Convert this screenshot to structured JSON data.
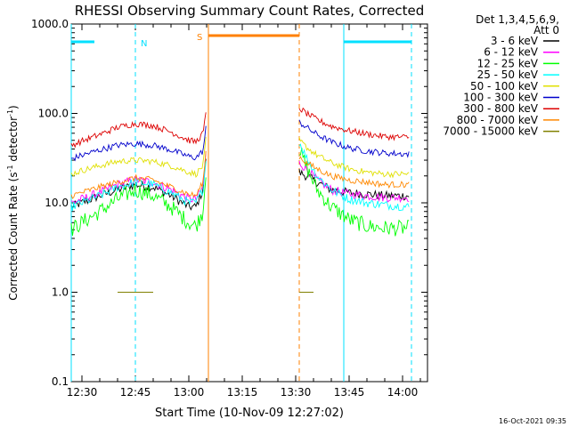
{
  "chart_data": {
    "type": "line",
    "title": "RHESSI Observing Summary Count Rates, Corrected",
    "xlabel": "Start Time (10-Nov-09 12:27:02)",
    "ylabel_main": "Corrected Count Rate (s",
    "ylabel_sup1": "-1",
    "ylabel_mid": " detector",
    "ylabel_sup2": "-1",
    "ylabel_end": ")",
    "y_scale": "log",
    "ylim": [
      0.1,
      1000
    ],
    "xlim_minutes": [
      -3,
      97
    ],
    "x_axis_note": "minutes relative to 12:30 on 10-Nov-09",
    "x_ticks": [
      {
        "minute": 0,
        "label": "12:30"
      },
      {
        "minute": 15,
        "label": "12:45"
      },
      {
        "minute": 30,
        "label": "13:00"
      },
      {
        "minute": 45,
        "label": "13:15"
      },
      {
        "minute": 60,
        "label": "13:30"
      },
      {
        "minute": 75,
        "label": "13:45"
      },
      {
        "minute": 90,
        "label": "14:00"
      }
    ],
    "y_ticks": [
      {
        "value": 0.1,
        "label": "0.1"
      },
      {
        "value": 1,
        "label": "1.0"
      },
      {
        "value": 10,
        "label": "10.0"
      },
      {
        "value": 100,
        "label": "100.0"
      },
      {
        "value": 1000,
        "label": "1000.0"
      }
    ],
    "legend_header": [
      "Det 1,3,4,5,6,9,",
      "Att 0"
    ],
    "legend_position": "top-right outside",
    "annotations": {
      "night_label": "N",
      "saa_label": "S",
      "footer_date": "16-Oct-2021 09:35"
    },
    "markers": {
      "night_bar_segments": [
        [
          -3,
          3.5
        ],
        [
          73.5,
          92.5
        ]
      ],
      "night_dashed_lines": [
        15,
        92.5
      ],
      "night_solid_lines": [
        -3,
        73.5
      ],
      "saa_bar_segment": [
        35.5,
        61
      ],
      "saa_solid_line": 35.5,
      "saa_dashed_line": 61
    },
    "series": [
      {
        "name": "3 - 6 keV",
        "color": "#000000",
        "pre": [
          [
            -3,
            9
          ],
          [
            0,
            10
          ],
          [
            5,
            12
          ],
          [
            10,
            14
          ],
          [
            15,
            16
          ],
          [
            20,
            15
          ],
          [
            25,
            12
          ],
          [
            30,
            9
          ],
          [
            32,
            9
          ],
          [
            34,
            14
          ],
          [
            35,
            40
          ]
        ],
        "post": [
          [
            61,
            22
          ],
          [
            63,
            20
          ],
          [
            66,
            17
          ],
          [
            70,
            14
          ],
          [
            75,
            13
          ],
          [
            80,
            12.5
          ],
          [
            85,
            12
          ],
          [
            92,
            12
          ]
        ]
      },
      {
        "name": "6 - 12 keV",
        "color": "#ff00ff",
        "pre": [
          [
            -3,
            10
          ],
          [
            0,
            11
          ],
          [
            5,
            13
          ],
          [
            10,
            16
          ],
          [
            15,
            18
          ],
          [
            20,
            17
          ],
          [
            25,
            14
          ],
          [
            30,
            11
          ],
          [
            32,
            11
          ],
          [
            34,
            15
          ],
          [
            35,
            45
          ]
        ],
        "post": [
          [
            61,
            28
          ],
          [
            63,
            24
          ],
          [
            66,
            18
          ],
          [
            70,
            14
          ],
          [
            75,
            12.5
          ],
          [
            80,
            12
          ],
          [
            85,
            11.5
          ],
          [
            92,
            11.5
          ]
        ]
      },
      {
        "name": "12 - 25 keV",
        "color": "#00ff00",
        "pre": [
          [
            -3,
            5
          ],
          [
            0,
            6
          ],
          [
            5,
            8
          ],
          [
            10,
            11
          ],
          [
            15,
            14
          ],
          [
            20,
            12
          ],
          [
            25,
            9
          ],
          [
            30,
            6
          ],
          [
            32,
            5.5
          ],
          [
            34,
            8
          ],
          [
            35,
            30
          ]
        ],
        "post": [
          [
            61,
            40
          ],
          [
            63,
            25
          ],
          [
            66,
            14
          ],
          [
            70,
            9
          ],
          [
            75,
            6.5
          ],
          [
            80,
            5.5
          ],
          [
            85,
            5.2
          ],
          [
            92,
            5.2
          ]
        ]
      },
      {
        "name": "25 - 50 keV",
        "color": "#00ffff",
        "pre": [
          [
            -3,
            9
          ],
          [
            0,
            10
          ],
          [
            5,
            12
          ],
          [
            10,
            15
          ],
          [
            15,
            17
          ],
          [
            20,
            16
          ],
          [
            25,
            13
          ],
          [
            30,
            10
          ],
          [
            32,
            10
          ],
          [
            34,
            14
          ],
          [
            35,
            35
          ]
        ],
        "post": [
          [
            61,
            48
          ],
          [
            63,
            32
          ],
          [
            66,
            20
          ],
          [
            70,
            14
          ],
          [
            75,
            11
          ],
          [
            80,
            10
          ],
          [
            85,
            9.5
          ],
          [
            92,
            9
          ]
        ]
      },
      {
        "name": "50 - 100 keV",
        "color": "#e0e000",
        "pre": [
          [
            -3,
            21
          ],
          [
            0,
            23
          ],
          [
            5,
            26
          ],
          [
            10,
            29
          ],
          [
            15,
            30
          ],
          [
            20,
            29
          ],
          [
            25,
            26
          ],
          [
            30,
            22
          ],
          [
            32,
            21
          ],
          [
            34,
            26
          ],
          [
            35,
            60
          ]
        ],
        "post": [
          [
            61,
            50
          ],
          [
            63,
            42
          ],
          [
            66,
            34
          ],
          [
            70,
            28
          ],
          [
            75,
            24
          ],
          [
            80,
            22
          ],
          [
            85,
            21
          ],
          [
            92,
            21
          ]
        ]
      },
      {
        "name": "100 - 300 keV",
        "color": "#0000cc",
        "pre": [
          [
            -3,
            31
          ],
          [
            0,
            34
          ],
          [
            5,
            39
          ],
          [
            10,
            44
          ],
          [
            15,
            46
          ],
          [
            20,
            44
          ],
          [
            25,
            39
          ],
          [
            30,
            33
          ],
          [
            32,
            32
          ],
          [
            34,
            38
          ],
          [
            35,
            80
          ]
        ],
        "post": [
          [
            61,
            80
          ],
          [
            63,
            70
          ],
          [
            66,
            58
          ],
          [
            70,
            48
          ],
          [
            75,
            41
          ],
          [
            80,
            38
          ],
          [
            85,
            36
          ],
          [
            92,
            35
          ]
        ]
      },
      {
        "name": "300 - 800 keV",
        "color": "#dd0000",
        "pre": [
          [
            -3,
            44
          ],
          [
            0,
            49
          ],
          [
            5,
            58
          ],
          [
            10,
            70
          ],
          [
            15,
            77
          ],
          [
            20,
            73
          ],
          [
            25,
            62
          ],
          [
            30,
            50
          ],
          [
            32,
            48
          ],
          [
            34,
            60
          ],
          [
            35,
            110
          ]
        ],
        "post": [
          [
            61,
            115
          ],
          [
            63,
            100
          ],
          [
            66,
            85
          ],
          [
            70,
            72
          ],
          [
            75,
            64
          ],
          [
            80,
            59
          ],
          [
            85,
            55
          ],
          [
            92,
            54
          ]
        ]
      },
      {
        "name": "800 - 7000 keV",
        "color": "#ff8800",
        "pre": [
          [
            -3,
            12
          ],
          [
            0,
            13
          ],
          [
            5,
            15
          ],
          [
            10,
            17
          ],
          [
            15,
            19
          ],
          [
            20,
            18
          ],
          [
            25,
            15
          ],
          [
            30,
            12.5
          ],
          [
            32,
            12
          ],
          [
            34,
            17
          ],
          [
            35,
            45
          ]
        ],
        "post": [
          [
            61,
            33
          ],
          [
            63,
            28
          ],
          [
            66,
            24
          ],
          [
            70,
            20
          ],
          [
            75,
            18
          ],
          [
            80,
            17
          ],
          [
            85,
            16
          ],
          [
            92,
            16
          ]
        ]
      },
      {
        "name": "7000 - 15000 keV",
        "color": "#808000",
        "pre": [
          [
            10,
            1
          ],
          [
            15,
            1
          ],
          [
            20,
            1
          ]
        ],
        "post": [
          [
            61,
            1
          ],
          [
            63,
            1
          ],
          [
            65,
            1
          ]
        ]
      }
    ]
  }
}
